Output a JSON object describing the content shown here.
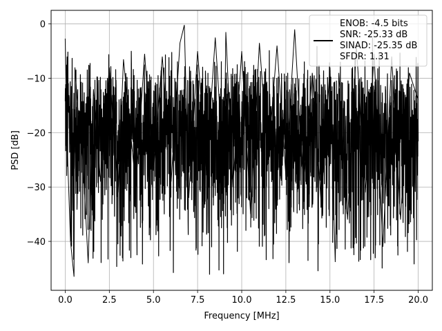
{
  "chart_data": {
    "type": "line",
    "xlabel": "Frequency [MHz]",
    "ylabel": "PSD [dB]",
    "xlim": [
      -0.8,
      20.8
    ],
    "ylim": [
      -49,
      2.5
    ],
    "xticks": [
      0.0,
      2.5,
      5.0,
      7.5,
      10.0,
      12.5,
      15.0,
      17.5,
      20.0
    ],
    "xtick_labels": [
      "0.0",
      "2.5",
      "5.0",
      "7.5",
      "10.0",
      "12.5",
      "15.0",
      "17.5",
      "20.0"
    ],
    "yticks": [
      0,
      -10,
      -20,
      -30,
      -40
    ],
    "ytick_labels": [
      "0",
      "−10",
      "−20",
      "−30",
      "−40"
    ],
    "grid": true,
    "legend_position": "top-right",
    "series": [
      {
        "name": "ENOB: -4.5 bits\nSNR: -25.33 dB\nSINAD: -25.35 dB\nSFDR: 1.31",
        "color": "#000000",
        "x": [
          0.0,
          0.15,
          0.3,
          0.5,
          0.55,
          0.7,
          1.0,
          1.3,
          1.6,
          2.0,
          2.5,
          3.0,
          3.3,
          4.0,
          4.5,
          5.0,
          5.5,
          6.0,
          6.5,
          6.75,
          7.0,
          7.5,
          8.0,
          8.5,
          9.0,
          9.1,
          9.5,
          10.0,
          10.5,
          11.0,
          11.5,
          12.0,
          12.5,
          13.0,
          13.5,
          14.0,
          14.5,
          15.0,
          15.3,
          15.5,
          16.0,
          16.5,
          17.0,
          17.5,
          18.0,
          18.5,
          19.0,
          19.5,
          20.0
        ],
        "y": [
          -2.7,
          -26.0,
          -40.0,
          -46.5,
          -8.0,
          -15.0,
          -25.0,
          -44.0,
          -12.0,
          -29.0,
          -8.0,
          -31.0,
          -6.5,
          -30.0,
          -5.5,
          -27.0,
          -6.0,
          -29.0,
          -3.5,
          -0.2,
          -32.0,
          -5.0,
          -27.0,
          -2.5,
          -28.0,
          -1.5,
          -30.0,
          -5.0,
          -35.0,
          -3.5,
          -25.0,
          -4.0,
          -28.0,
          -1.0,
          -30.0,
          -9.0,
          -33.0,
          -8.0,
          -43.8,
          -9.0,
          -36.0,
          -4.0,
          -31.0,
          -5.5,
          -41.0,
          -6.0,
          -36.0,
          -9.0,
          -14.0
        ]
      }
    ]
  }
}
